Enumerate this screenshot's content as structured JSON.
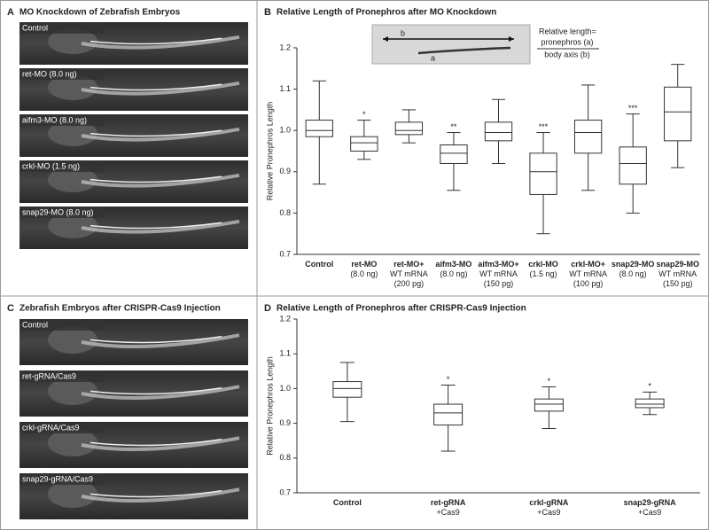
{
  "panels": [
    {
      "letter": "A",
      "title": "MO Knockdown of Zebrafish Embryos",
      "images": [
        "Control",
        "ret-MO (8.0 ng)",
        "aifm3-MO (8.0 ng)",
        "crkl-MO (1.5 ng)",
        "snap29-MO (8.0 ng)"
      ]
    },
    {
      "letter": "C",
      "title": "Zebrafish Embryos after CRISPR-Cas9 Injection",
      "images": [
        "Control",
        "ret-gRNA/Cas9",
        "crkl-gRNA/Cas9",
        "snap29-gRNA/Cas9"
      ]
    }
  ],
  "chart_data": [
    {
      "type": "box",
      "letter": "B",
      "title": "Relative Length of Pronephros after MO Knockdown",
      "y_label": "Relative Pronephros Length",
      "inset": {
        "label_b": "b",
        "label_a": "a",
        "formula_lead": "Relative length=",
        "numerator": "pronephros (a)",
        "denominator": "body axis (b)"
      },
      "categories": [
        [
          "Control"
        ],
        [
          "ret-MO",
          "(8.0 ng)"
        ],
        [
          "ret-MO+",
          "WT mRNA",
          "(200 pg)"
        ],
        [
          "aifm3-MO",
          "(8.0 ng)"
        ],
        [
          "aifm3-MO+",
          "WT mRNA",
          "(150 pg)"
        ],
        [
          "crkl-MO",
          "(1.5 ng)"
        ],
        [
          "crkl-MO+",
          "WT mRNA",
          "(100 pg)"
        ],
        [
          "snap29-MO",
          "(8.0 ng)"
        ],
        [
          "snap29-MO",
          "WT mRNA",
          "(150 pg)"
        ]
      ],
      "boxes": [
        {
          "min": 0.87,
          "q1": 0.985,
          "median": 1.0,
          "q3": 1.025,
          "max": 1.12
        },
        {
          "min": 0.93,
          "q1": 0.95,
          "median": 0.97,
          "q3": 0.985,
          "max": 1.025
        },
        {
          "min": 0.97,
          "q1": 0.99,
          "median": 1.0,
          "q3": 1.02,
          "max": 1.05
        },
        {
          "min": 0.855,
          "q1": 0.92,
          "median": 0.945,
          "q3": 0.965,
          "max": 0.995
        },
        {
          "min": 0.92,
          "q1": 0.975,
          "median": 0.995,
          "q3": 1.02,
          "max": 1.075
        },
        {
          "min": 0.75,
          "q1": 0.845,
          "median": 0.9,
          "q3": 0.945,
          "max": 0.995
        },
        {
          "min": 0.855,
          "q1": 0.945,
          "median": 0.995,
          "q3": 1.025,
          "max": 1.11
        },
        {
          "min": 0.8,
          "q1": 0.87,
          "median": 0.92,
          "q3": 0.96,
          "max": 1.04
        },
        {
          "min": 0.91,
          "q1": 0.975,
          "median": 1.045,
          "q3": 1.105,
          "max": 1.16
        }
      ],
      "significance": [
        null,
        "*",
        null,
        "**",
        null,
        "***",
        null,
        "***",
        null
      ],
      "ylim": [
        0.7,
        1.2
      ],
      "yticks": [
        0.7,
        0.8,
        0.9,
        {
          "value": 1.0,
          "label": "1.0"
        },
        1.1,
        1.2
      ]
    },
    {
      "type": "box",
      "letter": "D",
      "title": "Relative Length of Pronephros after CRISPR-Cas9 Injection",
      "y_label": "Relative Pronephros Length",
      "categories": [
        [
          "Control"
        ],
        [
          "ret-gRNA",
          "+Cas9"
        ],
        [
          "crkl-gRNA",
          "+Cas9"
        ],
        [
          "snap29-gRNA",
          "+Cas9"
        ]
      ],
      "boxes": [
        {
          "min": 0.905,
          "q1": 0.975,
          "median": 1.0,
          "q3": 1.02,
          "max": 1.075
        },
        {
          "min": 0.82,
          "q1": 0.895,
          "median": 0.93,
          "q3": 0.955,
          "max": 1.01
        },
        {
          "min": 0.885,
          "q1": 0.935,
          "median": 0.955,
          "q3": 0.97,
          "max": 1.005
        },
        {
          "min": 0.925,
          "q1": 0.945,
          "median": 0.955,
          "q3": 0.97,
          "max": 0.99
        }
      ],
      "significance": [
        "",
        "*",
        "*",
        "*"
      ],
      "ylim": [
        0.7,
        1.2
      ],
      "yticks": [
        0.7,
        0.8,
        0.9,
        {
          "value": 1.0,
          "label": "1.0"
        },
        1.1,
        1.2
      ]
    }
  ]
}
